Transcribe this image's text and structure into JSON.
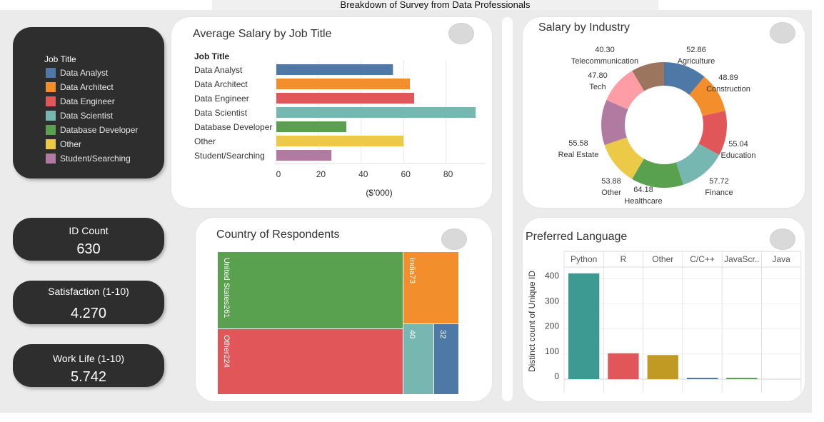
{
  "header": {
    "title": "Breakdown of Survey from Data Professionals"
  },
  "legend": {
    "title": "Job Title",
    "items": [
      {
        "label": "Data Analyst",
        "color": "#4e79a7"
      },
      {
        "label": "Data Architect",
        "color": "#f28e2b"
      },
      {
        "label": "Data Engineer",
        "color": "#e15759"
      },
      {
        "label": "Data Scientist",
        "color": "#76b7b2"
      },
      {
        "label": "Database Developer",
        "color": "#59a14f"
      },
      {
        "label": "Other",
        "color": "#edc948"
      },
      {
        "label": "Student/Searching",
        "color": "#b07aa1"
      }
    ]
  },
  "kpis": {
    "id_count": {
      "label": "ID Count",
      "value": "630"
    },
    "satisfaction": {
      "label": "Satisfaction (1-10)",
      "value": "4.270"
    },
    "work_life": {
      "label": "Work Life (1-10)",
      "value": "5.742"
    }
  },
  "salary_by_job": {
    "title": "Average Salary by Job Title",
    "header": "Job Title",
    "axis_label": "($’000)",
    "ticks": [
      "0",
      "20",
      "40",
      "60",
      "80"
    ]
  },
  "industry": {
    "title": "Salary by Industry"
  },
  "country": {
    "title": "Country of Respondents"
  },
  "language": {
    "title": "Preferred Language",
    "ylabel": "Distinct count of Unique ID",
    "columns": [
      "Python",
      "R",
      "Other",
      "C/C++",
      "JavaScr..",
      "Java"
    ],
    "ticks": [
      "0",
      "100",
      "200",
      "300",
      "400"
    ]
  },
  "chart_data": [
    {
      "type": "bar",
      "title": "Average Salary by Job Title",
      "xlabel": "($’000)",
      "ylabel": "Job Title",
      "orientation": "horizontal",
      "categories": [
        "Data Analyst",
        "Data Architect",
        "Data Engineer",
        "Data Scientist",
        "Database Developer",
        "Other",
        "Student/Searching"
      ],
      "values": [
        55,
        63,
        65,
        94,
        33,
        60,
        26
      ],
      "colors": [
        "#4e79a7",
        "#f28e2b",
        "#e15759",
        "#76b7b2",
        "#59a14f",
        "#edc948",
        "#b07aa1"
      ],
      "xlim": [
        0,
        100
      ],
      "grid": true
    },
    {
      "type": "pie",
      "title": "Salary by Industry",
      "donut": true,
      "slices": [
        {
          "label": "Agriculture",
          "value": 52.86,
          "display": "52.86",
          "color": "#4e79a7"
        },
        {
          "label": "Construction",
          "value": 48.89,
          "display": "48.89",
          "color": "#f28e2b"
        },
        {
          "label": "Education",
          "value": 55.04,
          "display": "55.04",
          "color": "#e15759"
        },
        {
          "label": "Finance",
          "value": 57.72,
          "display": "57.72",
          "color": "#76b7b2"
        },
        {
          "label": "Healthcare",
          "value": 64.18,
          "display": "64.18",
          "color": "#59a14f"
        },
        {
          "label": "Other",
          "value": 53.88,
          "display": "53.88",
          "color": "#edc948"
        },
        {
          "label": "Real Estate",
          "value": 55.58,
          "display": "55.58",
          "color": "#b07aa1"
        },
        {
          "label": "Tech",
          "value": 47.8,
          "display": "47.80",
          "color": "#ff9da7"
        },
        {
          "label": "Telecommunication",
          "value": 40.3,
          "display": "40.30",
          "color": "#9c755f"
        }
      ]
    },
    {
      "type": "treemap",
      "title": "Country of Respondents",
      "items": [
        {
          "label": "United States",
          "value": 261,
          "display": "261",
          "color": "#59a14f"
        },
        {
          "label": "Other",
          "value": 224,
          "display": "224",
          "color": "#e15759"
        },
        {
          "label": "India",
          "value": 73,
          "display": "73",
          "color": "#f28e2b"
        },
        {
          "label": "",
          "value": 40,
          "display": "40",
          "color": "#76b7b2"
        },
        {
          "label": "",
          "value": 32,
          "display": "32",
          "color": "#4e79a7"
        }
      ]
    },
    {
      "type": "bar",
      "title": "Preferred Language",
      "ylabel": "Distinct count of Unique ID",
      "categories": [
        "Python",
        "R",
        "Other",
        "C/C++",
        "JavaScr..",
        "Java"
      ],
      "values": [
        421,
        103,
        96,
        4,
        4,
        0
      ],
      "colors": [
        "#3c9a92",
        "#e15759",
        "#c19a24",
        "#4e79a7",
        "#59a14f",
        "#999999"
      ],
      "ylim": [
        0,
        450
      ],
      "grid": true
    }
  ]
}
